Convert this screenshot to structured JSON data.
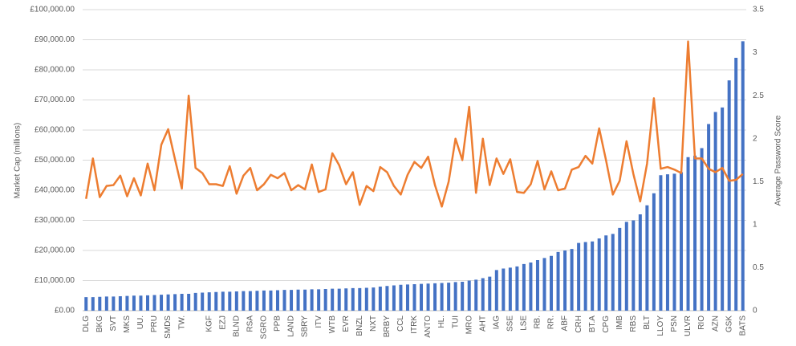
{
  "chart_data": {
    "type": "bar-line",
    "y_label": "Market Cap (millions)",
    "y2_label": "Average Password Score",
    "categories": [
      "DLG",
      null,
      "BKG",
      null,
      "SVT",
      null,
      "MKS",
      null,
      "UU.",
      null,
      "PRU",
      null,
      "SMDS",
      null,
      "TW.",
      null,
      null,
      null,
      "KGF",
      null,
      "EZJ",
      null,
      "BLND",
      null,
      "RSA",
      null,
      "SGRO",
      null,
      "PPB",
      null,
      "LAND",
      null,
      "SBRY",
      null,
      "ITV",
      null,
      "WTB",
      null,
      "EVR",
      null,
      "BNZL",
      null,
      "NXT",
      null,
      "BRBY",
      null,
      "CCL",
      null,
      "ITRK",
      null,
      "ANTO",
      null,
      "HL.",
      null,
      "TUI",
      null,
      "MRO",
      null,
      "AHT",
      null,
      "IAG",
      null,
      "SSE",
      null,
      "LSE",
      null,
      "RB.",
      null,
      "RR.",
      null,
      "ABF",
      null,
      "CRH",
      null,
      "BT.A",
      null,
      "CPG",
      null,
      "IMB",
      null,
      "RBS",
      null,
      "BLT",
      null,
      "LLOY",
      null,
      "PSN",
      null,
      "ULVR",
      null,
      "RIO",
      null,
      "AZN",
      null,
      "GSK",
      null,
      "BATS"
    ],
    "series": [
      {
        "type": "bar",
        "color": "#4472c4",
        "values": [
          4500,
          4500,
          4600,
          4700,
          4700,
          4800,
          4900,
          5000,
          5000,
          5100,
          5200,
          5300,
          5400,
          5500,
          5600,
          5600,
          5900,
          6000,
          6100,
          6200,
          6300,
          6300,
          6400,
          6500,
          6500,
          6600,
          6700,
          6700,
          6800,
          6900,
          6900,
          7000,
          7000,
          7100,
          7100,
          7200,
          7300,
          7300,
          7400,
          7500,
          7500,
          7600,
          7700,
          8000,
          8200,
          8400,
          8600,
          8700,
          8800,
          8900,
          9000,
          9100,
          9200,
          9300,
          9500,
          9600,
          10000,
          10300,
          10800,
          11300,
          13500,
          14000,
          14300,
          14700,
          15500,
          16000,
          16800,
          17500,
          18200,
          19500,
          20000,
          20500,
          22500,
          22800,
          23000,
          24000,
          25000,
          25500,
          27500,
          29500,
          30000,
          32000,
          35000,
          39000,
          45000,
          45300,
          45500,
          46000,
          51000,
          51500,
          54000,
          62000,
          66000,
          67500,
          76500,
          84000,
          89500
        ]
      },
      {
        "type": "line",
        "axis": "y2",
        "color": "#ed7d31",
        "values": [
          1.3,
          1.77,
          1.32,
          1.45,
          1.46,
          1.57,
          1.33,
          1.54,
          1.34,
          1.71,
          1.4,
          1.93,
          2.11,
          1.76,
          1.42,
          2.5,
          1.66,
          1.6,
          1.47,
          1.47,
          1.45,
          1.68,
          1.36,
          1.57,
          1.66,
          1.4,
          1.47,
          1.58,
          1.54,
          1.6,
          1.4,
          1.46,
          1.41,
          1.7,
          1.38,
          1.41,
          1.83,
          1.69,
          1.47,
          1.61,
          1.23,
          1.45,
          1.39,
          1.67,
          1.61,
          1.45,
          1.35,
          1.58,
          1.73,
          1.66,
          1.79,
          1.46,
          1.21,
          1.5,
          2.0,
          1.75,
          2.37,
          1.37,
          2.0,
          1.46,
          1.77,
          1.59,
          1.76,
          1.38,
          1.37,
          1.47,
          1.74,
          1.41,
          1.62,
          1.4,
          1.42,
          1.64,
          1.67,
          1.8,
          1.71,
          2.12,
          1.75,
          1.35,
          1.51,
          1.97,
          1.59,
          1.27,
          1.71,
          2.47,
          1.65,
          1.67,
          1.64,
          1.6,
          3.13,
          1.77,
          1.77,
          1.65,
          1.61,
          1.66,
          1.51,
          1.52,
          1.59
        ]
      }
    ],
    "ylim": [
      0,
      100000
    ],
    "yticks": [
      {
        "value": 0,
        "label": "£0.00"
      },
      {
        "value": 10000,
        "label": "£10,000.00"
      },
      {
        "value": 20000,
        "label": "£20,000.00"
      },
      {
        "value": 30000,
        "label": "£30,000.00"
      },
      {
        "value": 40000,
        "label": "£40,000.00"
      },
      {
        "value": 50000,
        "label": "£50,000.00"
      },
      {
        "value": 60000,
        "label": "£60,000.00"
      },
      {
        "value": 70000,
        "label": "£70,000.00"
      },
      {
        "value": 80000,
        "label": "£80,000.00"
      },
      {
        "value": 90000,
        "label": "£90,000.00"
      },
      {
        "value": 100000,
        "label": "£100,000.00"
      }
    ],
    "y2lim": [
      0,
      3.5
    ],
    "y2ticks": [
      0,
      0.5,
      1,
      1.5,
      2,
      2.5,
      3,
      3.5
    ],
    "grid": true
  }
}
